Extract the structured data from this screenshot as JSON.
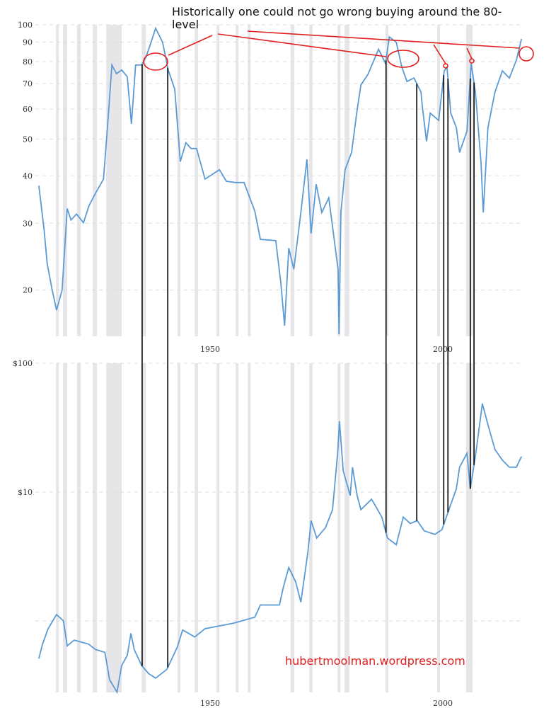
{
  "colors": {
    "series": "#5b9bd5",
    "recession": "#e6e6e8",
    "annotation": "#e0201e",
    "marker_lines": "#000000",
    "grid": "#dddddd"
  },
  "annotation": {
    "text": "Historically one could not go wrong buying around the 80-level"
  },
  "watermark": "hubertmoolman.wordpress.com",
  "chart_data": [
    {
      "type": "line",
      "y_scale": "log",
      "grid": true,
      "xlim": [
        1913,
        2017
      ],
      "ylim": [
        15,
        105
      ],
      "x_ticks": [
        "1950",
        "2000"
      ],
      "x_tick_values": [
        1950,
        2000
      ],
      "y_ticks": [
        "100",
        "90",
        "80",
        "70",
        "60",
        "50",
        "40",
        "30",
        "20"
      ],
      "y_tick_values": [
        100,
        90,
        80,
        70,
        60,
        50,
        40,
        30,
        20
      ],
      "recessions": [
        [
          1916.9,
          1917.5
        ],
        [
          1918.4,
          1919.3
        ],
        [
          1921.4,
          1922.2
        ],
        [
          1924.8,
          1925.7
        ],
        [
          1927.7,
          1931.0
        ],
        [
          1935.3,
          1936.2
        ],
        [
          1943.0,
          1943.6
        ],
        [
          1946.7,
          1947.4
        ],
        [
          1951.4,
          1952.0
        ],
        [
          1955.5,
          1956.1
        ],
        [
          1958.1,
          1958.7
        ],
        [
          1967.3,
          1968.1
        ],
        [
          1971.3,
          1972.0
        ],
        [
          1977.4,
          1978.0
        ],
        [
          1978.9,
          1979.9
        ],
        [
          1987.7,
          1988.3
        ],
        [
          1998.8,
          1999.4
        ],
        [
          2005.0,
          2006.4
        ]
      ],
      "x": [
        1913.2,
        1914.3,
        1915.0,
        1916.0,
        1917.0,
        1918.2,
        1919.3,
        1920.1,
        1921.3,
        1922.8,
        1924.0,
        1925.4,
        1927.1,
        1928.0,
        1928.9,
        1929.9,
        1931.0,
        1932.2,
        1933.1,
        1934.0,
        1935.3,
        1936.2,
        1937.2,
        1938.3,
        1939.8,
        1941.0,
        1942.4,
        1943.6,
        1944.8,
        1945.9,
        1947.1,
        1948.9,
        1952.0,
        1953.5,
        1955.5,
        1957.3,
        1959.6,
        1960.8,
        1964.1,
        1965.2,
        1966.0,
        1966.9,
        1968.0,
        1969.5,
        1970.8,
        1971.7,
        1972.8,
        1974.0,
        1975.5,
        1977.5,
        1977.7,
        1978.1,
        1979.0,
        1980.4,
        1981.6,
        1982.4,
        1983.9,
        1985.0,
        1986.2,
        1987.7,
        1988.5,
        1990.0,
        1991.2,
        1992.3,
        1993.8,
        1995.3,
        1995.6,
        1996.5,
        1997.3,
        1999.1,
        2000.3,
        2000.9,
        2001.7,
        2002.9,
        2003.6,
        2005.2,
        2006.1,
        2007.0,
        2008.2,
        2008.7,
        2009.7,
        2011.2,
        2012.8,
        2014.3,
        2015.8,
        2016.9
      ],
      "y": [
        37.7,
        29.1,
        23.5,
        20.2,
        17.7,
        20.0,
        32.8,
        30.6,
        31.7,
        30.1,
        33.4,
        36.0,
        39.2,
        54.6,
        78.3,
        74.3,
        76.0,
        73.0,
        54.8,
        78.3,
        78.3,
        82.1,
        89.1,
        97.9,
        89.9,
        76.0,
        67.7,
        43.6,
        48.9,
        47.2,
        47.2,
        39.2,
        41.5,
        38.7,
        38.4,
        38.4,
        32.3,
        27.2,
        27.0,
        20.9,
        16.1,
        25.8,
        22.7,
        32.0,
        44.2,
        28.2,
        38.0,
        32.0,
        35.0,
        22.7,
        15.3,
        32.0,
        41.5,
        46.1,
        59.7,
        69.4,
        74.0,
        79.6,
        86.2,
        79.0,
        92.9,
        89.9,
        77.3,
        70.9,
        72.4,
        66.5,
        61.0,
        49.3,
        58.5,
        56.0,
        75.6,
        77.3,
        58.5,
        53.6,
        46.1,
        52.5,
        79.0,
        66.5,
        43.3,
        32.0,
        53.6,
        66.5,
        75.6,
        72.4,
        80.7,
        91.8
      ],
      "highlight_years": [
        1935.4,
        1940.9,
        1987.8,
        1994.4,
        2000.2,
        2001.1,
        2005.9,
        2006.7
      ]
    },
    {
      "type": "line",
      "y_scale": "log",
      "grid": true,
      "xlim": [
        1913,
        2017
      ],
      "ylim": [
        0.28,
        105
      ],
      "x_ticks": [
        "1950",
        "2000"
      ],
      "x_tick_values": [
        1950,
        2000
      ],
      "y_ticks": [
        "$100",
        "$10",
        ""
      ],
      "y_tick_values": [
        100,
        10,
        1
      ],
      "x": [
        1913.2,
        1914.0,
        1915.2,
        1917.0,
        1918.5,
        1919.3,
        1920.8,
        1923.9,
        1925.4,
        1927.4,
        1928.4,
        1930.0,
        1931.0,
        1932.2,
        1933.0,
        1933.7,
        1935.3,
        1936.8,
        1938.3,
        1940.7,
        1942.9,
        1944.1,
        1946.7,
        1948.9,
        1955.0,
        1959.6,
        1960.8,
        1964.9,
        1965.7,
        1966.9,
        1968.4,
        1969.5,
        1971.0,
        1971.7,
        1972.9,
        1974.8,
        1976.3,
        1977.4,
        1977.8,
        1978.6,
        1980.1,
        1980.6,
        1981.6,
        1982.4,
        1984.7,
        1986.9,
        1988.1,
        1990.0,
        1991.5,
        1993.0,
        1994.5,
        1996.0,
        1998.3,
        1999.8,
        2001.3,
        2002.9,
        2003.6,
        2005.2,
        2005.9,
        2007.0,
        2008.5,
        2009.7,
        2011.2,
        2012.8,
        2014.3,
        2015.8,
        2016.9
      ],
      "y": [
        0.51,
        0.66,
        0.87,
        1.12,
        1.0,
        0.64,
        0.71,
        0.66,
        0.6,
        0.57,
        0.35,
        0.28,
        0.45,
        0.54,
        0.8,
        0.6,
        0.45,
        0.39,
        0.36,
        0.42,
        0.62,
        0.85,
        0.75,
        0.87,
        0.96,
        1.07,
        1.33,
        1.33,
        1.8,
        2.6,
        2.0,
        1.4,
        3.4,
        6.0,
        4.4,
        5.3,
        7.3,
        20,
        35.4,
        14.6,
        9.4,
        15.6,
        9.4,
        7.3,
        8.8,
        6.4,
        4.4,
        3.9,
        6.4,
        5.7,
        6.0,
        5.0,
        4.7,
        5.1,
        7.3,
        10.6,
        15.6,
        20,
        10.6,
        19,
        48.6,
        33.3,
        21.4,
        17.7,
        15.6,
        15.6,
        18.9
      ]
    }
  ]
}
